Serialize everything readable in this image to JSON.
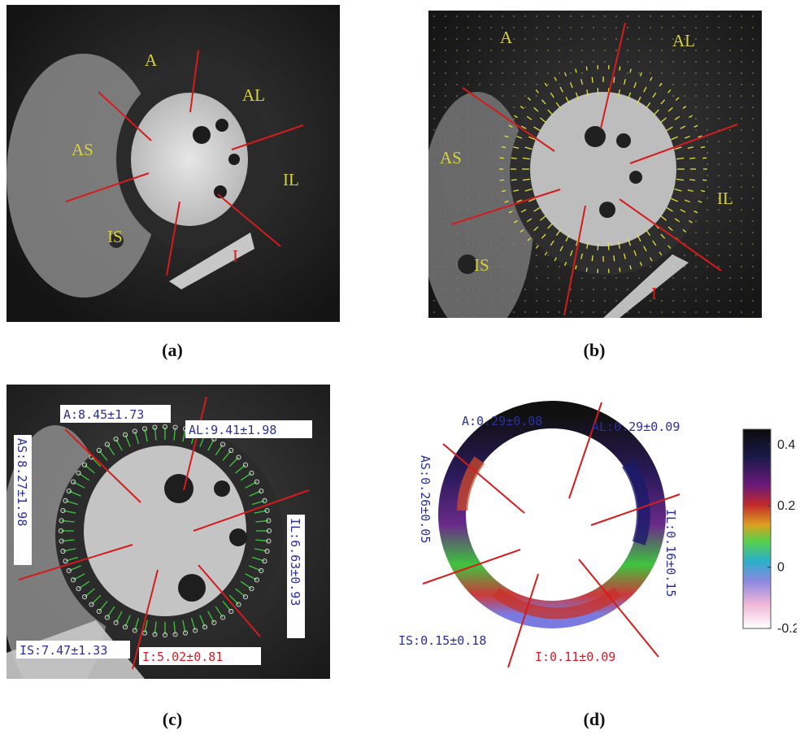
{
  "panel_a": {
    "caption": "(a)",
    "segments": {
      "A": "A",
      "AL": "AL",
      "AS": "AS",
      "IL": "IL",
      "IS": "IS",
      "I": "I"
    }
  },
  "panel_b": {
    "caption": "(b)",
    "segments": {
      "A": "A",
      "AL": "AL",
      "AS": "AS",
      "IL": "IL",
      "IS": "IS",
      "I": "I"
    }
  },
  "panel_c": {
    "caption": "(c)",
    "labels": {
      "A": "A:8.45±1.73",
      "AL": "AL:9.41±1.98",
      "AS": "AS:8.27±1.98",
      "IL": "IL:6.63±0.93",
      "IS": "IS:7.47±1.33",
      "I": "I:5.02±0.81"
    }
  },
  "panel_d": {
    "caption": "(d)",
    "labels": {
      "A": "A:0.29±0.08",
      "AL": "AL:0.29±0.09",
      "AS": "AS:0.26±0.05",
      "IL": "IL:0.16±0.15",
      "IS": "IS:0.15±0.18",
      "I": "I:0.11±0.09"
    },
    "colorbar": {
      "ticks": [
        "0.4",
        "0.2",
        "0",
        "-0.2"
      ],
      "values": [
        0.4,
        0.2,
        0,
        -0.2
      ],
      "range": [
        -0.2,
        0.45
      ]
    }
  },
  "colors": {
    "segment_line": "#d41c1c",
    "label_yellow": "#d9d23a",
    "vector_yellow": "#e8e23c",
    "contour_green": "#3cc83c"
  }
}
